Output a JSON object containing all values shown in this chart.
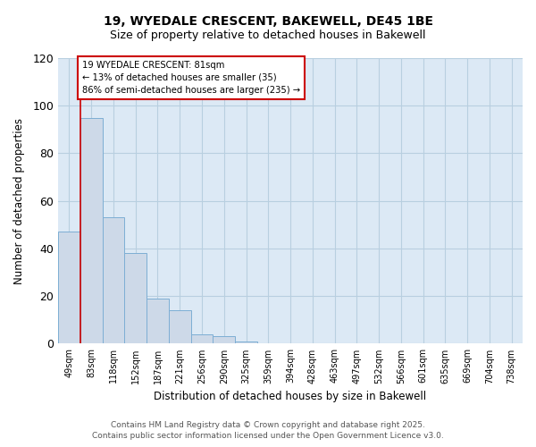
{
  "title1": "19, WYEDALE CRESCENT, BAKEWELL, DE45 1BE",
  "title2": "Size of property relative to detached houses in Bakewell",
  "bar_labels": [
    "49sqm",
    "83sqm",
    "118sqm",
    "152sqm",
    "187sqm",
    "221sqm",
    "256sqm",
    "290sqm",
    "325sqm",
    "359sqm",
    "394sqm",
    "428sqm",
    "463sqm",
    "497sqm",
    "532sqm",
    "566sqm",
    "601sqm",
    "635sqm",
    "669sqm",
    "704sqm",
    "738sqm"
  ],
  "bar_values": [
    47,
    95,
    53,
    38,
    19,
    14,
    4,
    3,
    1,
    0,
    0,
    0,
    0,
    0,
    0,
    0,
    0,
    0,
    0,
    0,
    0
  ],
  "bar_color": "#cdd9e8",
  "bar_edge_color": "#7daed4",
  "ylabel": "Number of detached properties",
  "xlabel": "Distribution of detached houses by size in Bakewell",
  "ylim": [
    0,
    120
  ],
  "yticks": [
    0,
    20,
    40,
    60,
    80,
    100,
    120
  ],
  "property_line_color": "#cc0000",
  "annotation_title": "19 WYEDALE CRESCENT: 81sqm",
  "annotation_line1": "← 13% of detached houses are smaller (35)",
  "annotation_line2": "86% of semi-detached houses are larger (235) →",
  "annotation_box_color": "#cc0000",
  "footer1": "Contains HM Land Registry data © Crown copyright and database right 2025.",
  "footer2": "Contains public sector information licensed under the Open Government Licence v3.0.",
  "bg_color": "#ffffff",
  "plot_bg_color": "#dce9f5",
  "grid_color": "#b8cfe0"
}
